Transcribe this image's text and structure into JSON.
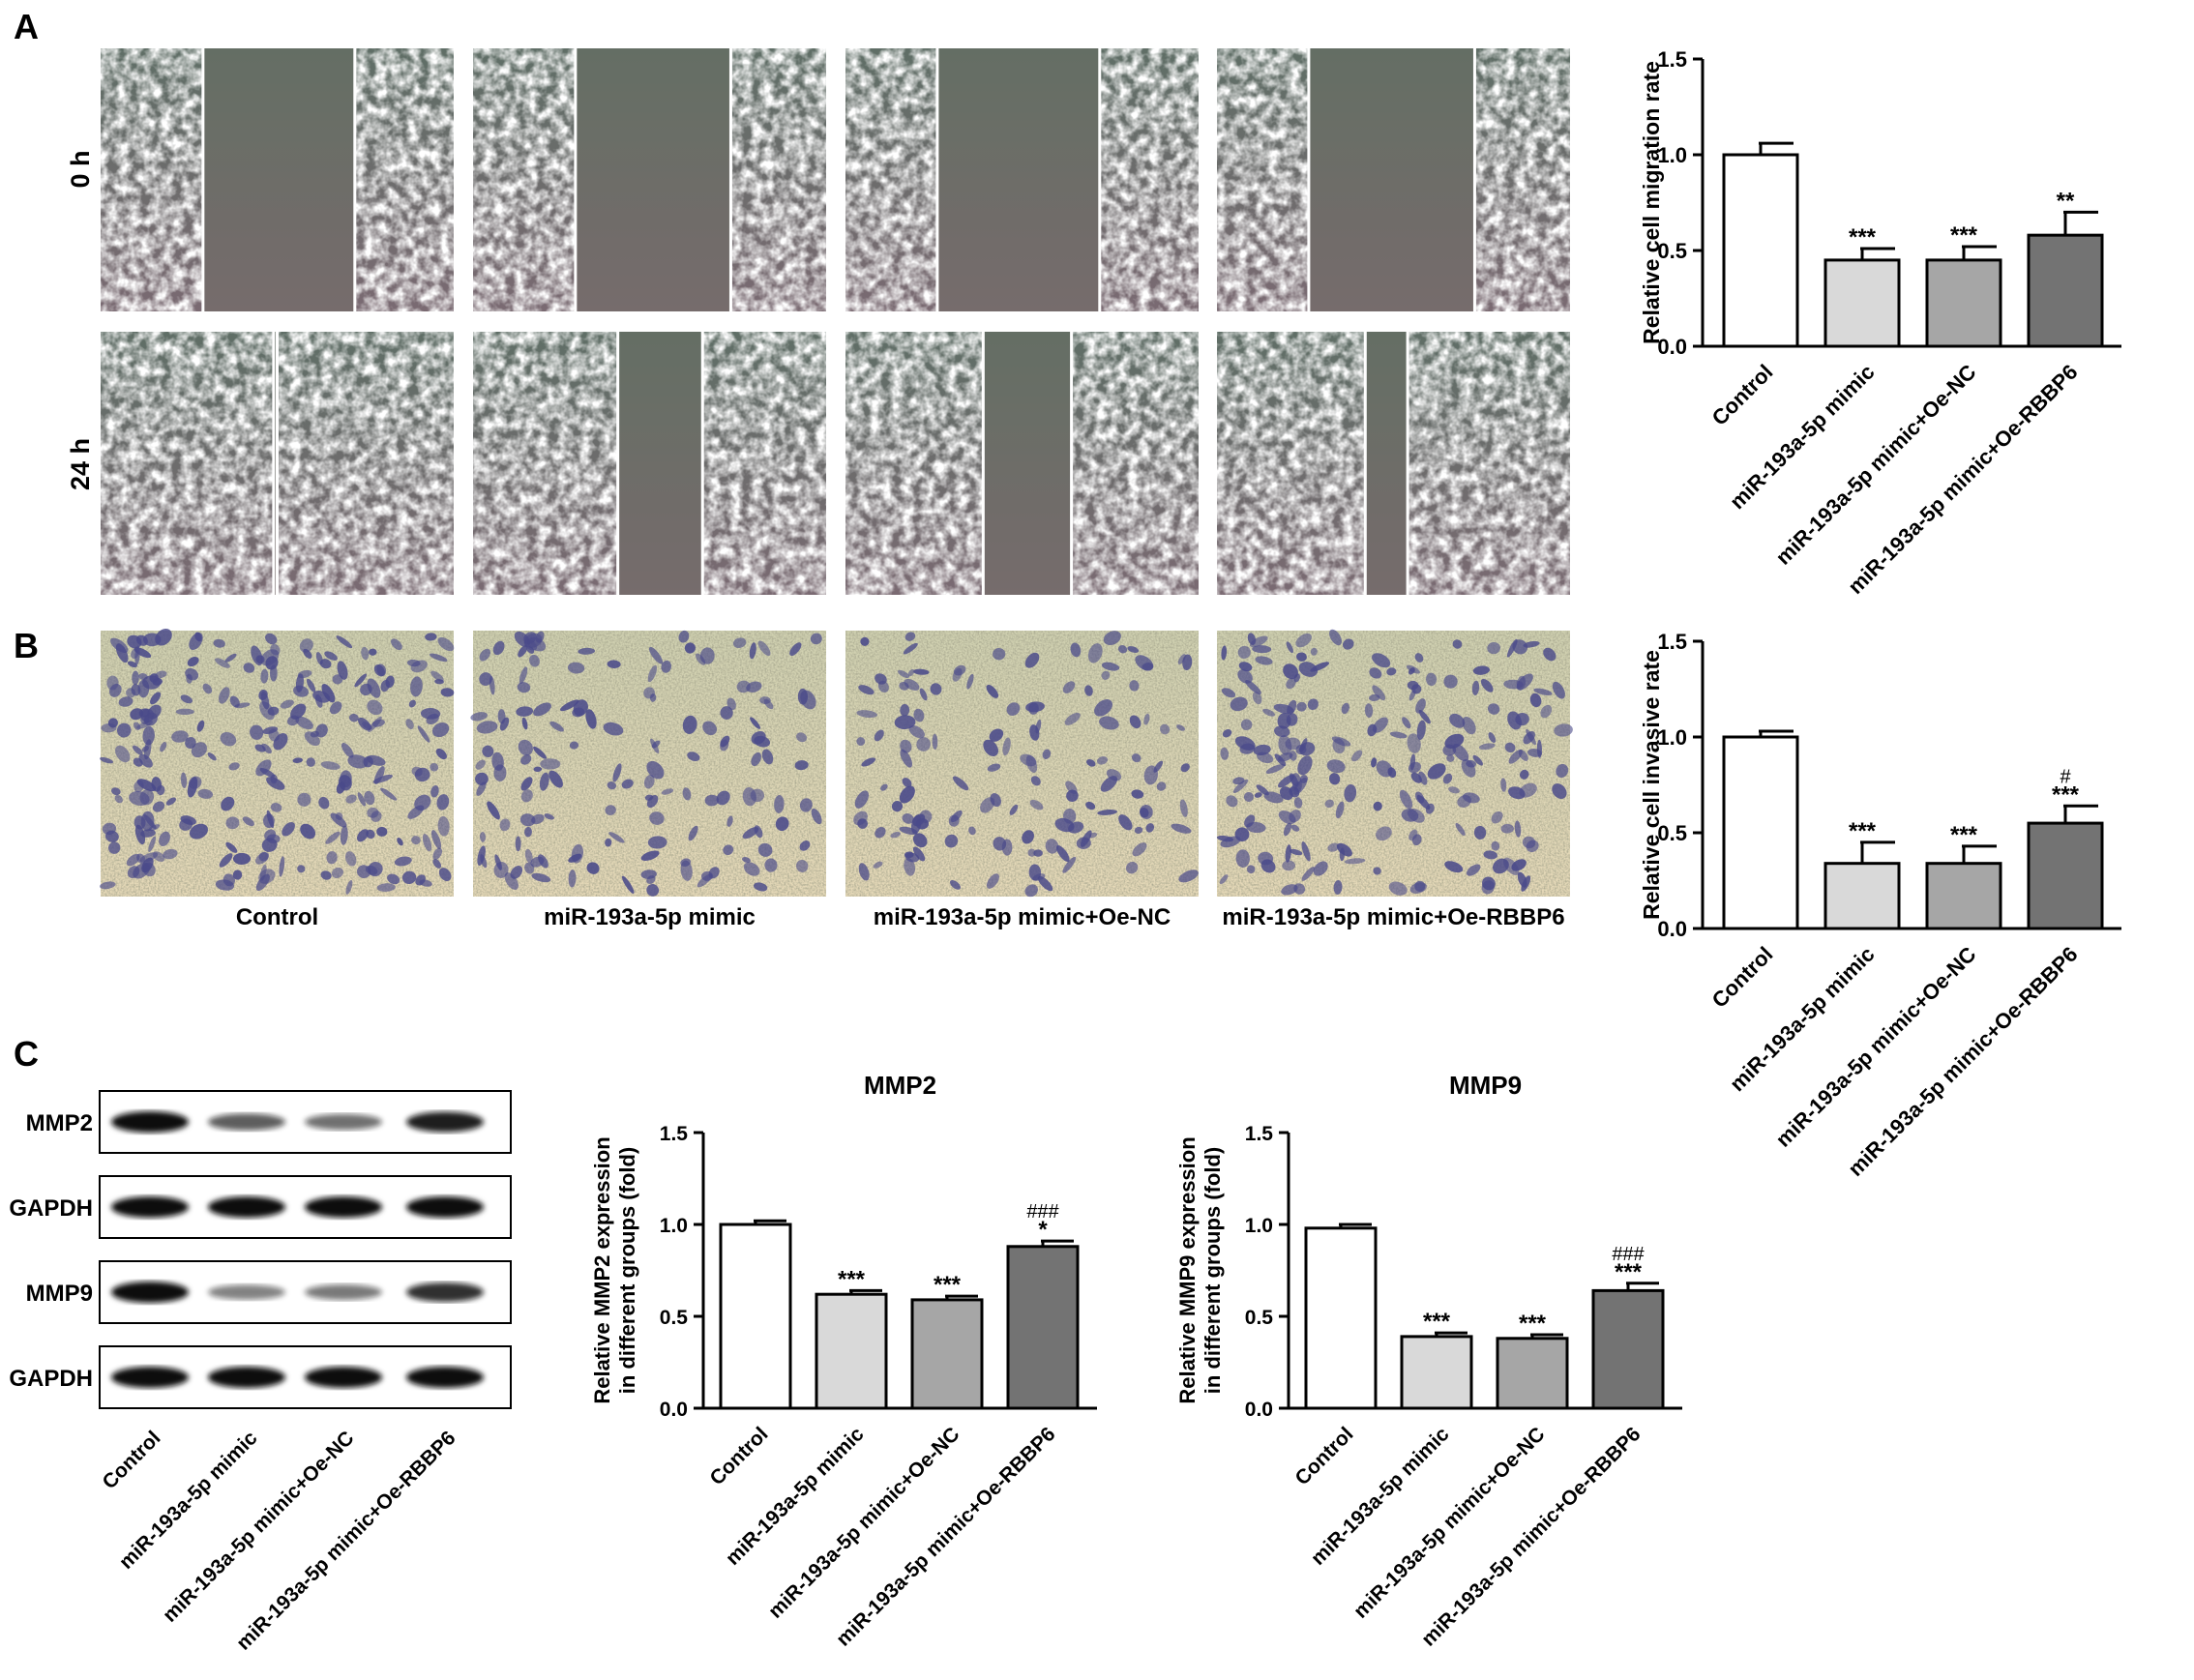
{
  "panels": {
    "a": "A",
    "b": "B",
    "c": "C"
  },
  "scratch": {
    "row_labels": [
      "0 h",
      "24 h"
    ]
  },
  "groups": [
    "Control",
    "miR-193a-5p mimic",
    "miR-193a-5p mimic+Oe-NC",
    "miR-193a-5p mimic+Oe-RBBP6"
  ],
  "blot": {
    "rows": [
      "MMP2",
      "GAPDH",
      "MMP9",
      "GAPDH"
    ],
    "intensity": [
      [
        1.0,
        0.55,
        0.45,
        0.9
      ],
      [
        1.0,
        1.0,
        1.0,
        1.0
      ],
      [
        1.0,
        0.35,
        0.4,
        0.8
      ],
      [
        1.0,
        1.0,
        1.0,
        1.0
      ]
    ]
  },
  "colors": {
    "bars": [
      "#ffffff",
      "#d9d9d9",
      "#a6a6a6",
      "#737373"
    ],
    "stain": "#4a4a8a",
    "scratch_bg": "#6e7060"
  },
  "chart_data": [
    {
      "type": "bar",
      "title": "",
      "xlabel": "",
      "ylabel": "Relative cell migration rate",
      "categories": [
        "Control",
        "miR-193a-5p mimic",
        "miR-193a-5p mimic+Oe-NC",
        "miR-193a-5p mimic+Oe-RBBP6"
      ],
      "values": [
        1.0,
        0.45,
        0.45,
        0.58
      ],
      "errors": [
        0.06,
        0.06,
        0.07,
        0.12
      ],
      "annotations": [
        "",
        "***",
        "***",
        "**"
      ],
      "ylim": [
        0,
        1.5
      ],
      "yticks": [
        "0.0",
        "0.5",
        "1.0",
        "1.5"
      ]
    },
    {
      "type": "bar",
      "title": "",
      "xlabel": "",
      "ylabel": "Relative cell invasive rate",
      "categories": [
        "Control",
        "miR-193a-5p mimic",
        "miR-193a-5p mimic+Oe-NC",
        "miR-193a-5p mimic+Oe-RBBP6"
      ],
      "values": [
        1.0,
        0.34,
        0.34,
        0.55
      ],
      "errors": [
        0.03,
        0.11,
        0.09,
        0.09
      ],
      "annotations": [
        "",
        "***",
        "***",
        "***"
      ],
      "annotations2": [
        "",
        "",
        "",
        "#"
      ],
      "ylim": [
        0,
        1.5
      ],
      "yticks": [
        "0.0",
        "0.5",
        "1.0",
        "1.5"
      ]
    },
    {
      "type": "bar",
      "title": "MMP2",
      "xlabel": "",
      "ylabel": "Relative MMP2 expression",
      "ylabel2": "in different groups (fold)",
      "categories": [
        "Control",
        "miR-193a-5p mimic",
        "miR-193a-5p mimic+Oe-NC",
        "miR-193a-5p mimic+Oe-RBBP6"
      ],
      "values": [
        1.0,
        0.62,
        0.59,
        0.88
      ],
      "errors": [
        0.02,
        0.02,
        0.02,
        0.03
      ],
      "annotations": [
        "",
        "***",
        "***",
        "*"
      ],
      "annotations2": [
        "",
        "",
        "",
        "###"
      ],
      "ylim": [
        0,
        1.5
      ],
      "yticks": [
        "0.0",
        "0.5",
        "1.0",
        "1.5"
      ]
    },
    {
      "type": "bar",
      "title": "MMP9",
      "xlabel": "",
      "ylabel": "Relative MMP9 expression",
      "ylabel2": "in different groups (fold)",
      "categories": [
        "Control",
        "miR-193a-5p mimic",
        "miR-193a-5p mimic+Oe-NC",
        "miR-193a-5p mimic+Oe-RBBP6"
      ],
      "values": [
        0.98,
        0.39,
        0.38,
        0.64
      ],
      "errors": [
        0.02,
        0.02,
        0.02,
        0.04
      ],
      "annotations": [
        "",
        "***",
        "***",
        "***"
      ],
      "annotations2": [
        "",
        "",
        "",
        "###"
      ],
      "ylim": [
        0,
        1.5
      ],
      "yticks": [
        "0.0",
        "0.5",
        "1.0",
        "1.5"
      ]
    }
  ]
}
